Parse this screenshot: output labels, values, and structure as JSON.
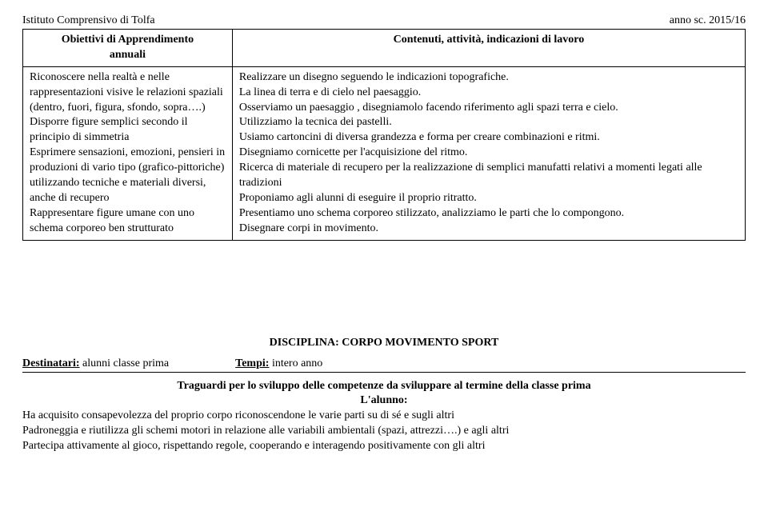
{
  "header": {
    "institute": "Istituto Comprensivo di Tolfa",
    "year": "anno sc. 2015/16"
  },
  "table": {
    "head_left_line1": "Obiettivi di Apprendimento",
    "head_left_line2": "annuali",
    "head_right": "Contenuti, attività, indicazioni di lavoro",
    "left_body": "Riconoscere nella realtà e nelle rappresentazioni visive le relazioni spaziali (dentro, fuori, figura, sfondo, sopra….) Disporre figure semplici secondo il principio di simmetria\nEsprimere sensazioni, emozioni, pensieri in produzioni di vario tipo (grafico-pittoriche) utilizzando tecniche e materiali diversi, anche di recupero\nRappresentare figure umane con uno schema corporeo ben strutturato",
    "right_body": "Realizzare un disegno seguendo le indicazioni topografiche.\nLa linea di terra e di cielo nel paesaggio.\nOsserviamo un paesaggio , disegniamolo facendo riferimento agli spazi terra e cielo.\nUtilizziamo la tecnica dei pastelli.\nUsiamo cartoncini di diversa grandezza e forma per creare combinazioni e ritmi.\nDisegniamo cornicette per l'acquisizione del ritmo.\nRicerca di materiale di recupero per la realizzazione di semplici manufatti relativi a momenti legati alle tradizioni\nProponiamo agli alunni di eseguire il proprio ritratto.\nPresentiamo uno schema corporeo stilizzato, analizziamo le parti che lo compongono.\nDisegnare corpi in movimento."
  },
  "section2": {
    "discipline": "DISCIPLINA: CORPO MOVIMENTO SPORT",
    "dest_label": "Destinatari:",
    "dest_value": "  alunni classe prima",
    "tempi_label": "Tempi:",
    "tempi_value": "  intero anno",
    "traguardi_title": "Traguardi per lo sviluppo delle competenze da sviluppare al termine della classe prima",
    "alunno_label": "L'alunno:",
    "body_lines": [
      "Ha acquisito consapevolezza del proprio corpo riconoscendone le varie parti su di sé e sugli altri",
      "Padroneggia e riutilizza gli schemi motori in relazione alle variabili ambientali (spazi, attrezzi….) e agli altri",
      "Partecipa attivamente al gioco, rispettando regole, cooperando e interagendo positivamente con gli altri"
    ]
  }
}
